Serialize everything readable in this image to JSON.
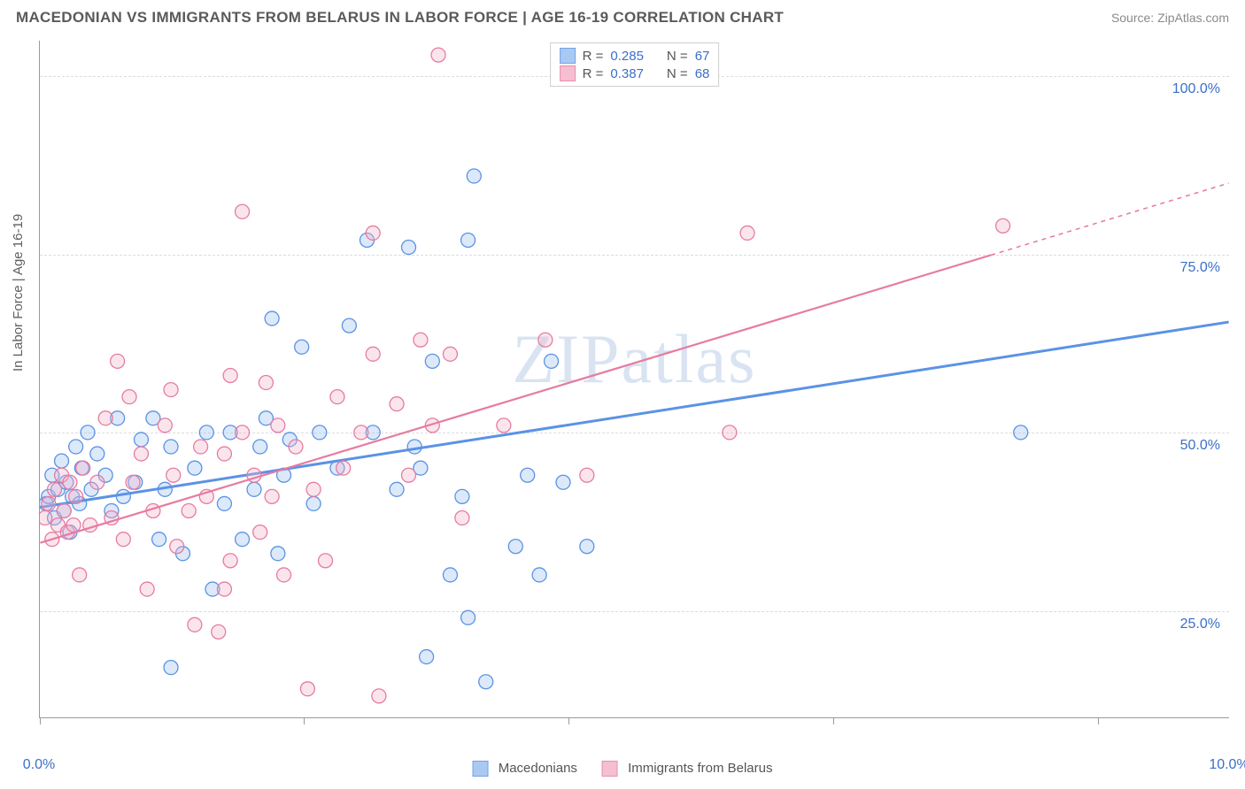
{
  "header": {
    "title": "MACEDONIAN VS IMMIGRANTS FROM BELARUS IN LABOR FORCE | AGE 16-19 CORRELATION CHART",
    "source": "Source: ZipAtlas.com"
  },
  "watermark": "ZIPatlas",
  "chart": {
    "type": "scatter",
    "ylabel": "In Labor Force | Age 16-19",
    "xlim": [
      0,
      10
    ],
    "ylim": [
      10,
      105
    ],
    "background_color": "#ffffff",
    "grid_color": "#dcdcdc",
    "axis_color": "#9a9a9a",
    "tick_label_color": "#3b6fc9",
    "tick_fontsize": 16,
    "label_fontsize": 15,
    "y_gridlines": [
      25,
      50,
      75,
      100
    ],
    "x_ticks": [
      0,
      2.22,
      4.44,
      6.67,
      8.89
    ],
    "x_tick_labels": {
      "0": "0.0%",
      "10": "10.0%"
    },
    "y_tick_labels": {
      "25": "25.0%",
      "50": "50.0%",
      "75": "75.0%",
      "100": "100.0%"
    },
    "marker_radius": 8,
    "marker_stroke_width": 1.3,
    "marker_fill_opacity": 0.35,
    "series": [
      {
        "name": "Macedonians",
        "color_stroke": "#5b92e5",
        "color_fill": "#9cc0f0",
        "R": 0.285,
        "N": 67,
        "trend": {
          "x1": 0,
          "y1": 39.5,
          "x2": 10,
          "y2": 65.5,
          "width": 3,
          "solid_to_x": 10
        },
        "points": [
          [
            0.05,
            40
          ],
          [
            0.07,
            41
          ],
          [
            0.1,
            44
          ],
          [
            0.12,
            38
          ],
          [
            0.15,
            42
          ],
          [
            0.18,
            46
          ],
          [
            0.2,
            39
          ],
          [
            0.22,
            43
          ],
          [
            0.25,
            36
          ],
          [
            0.27,
            41
          ],
          [
            0.3,
            48
          ],
          [
            0.33,
            40
          ],
          [
            0.35,
            45
          ],
          [
            0.4,
            50
          ],
          [
            0.43,
            42
          ],
          [
            0.48,
            47
          ],
          [
            0.55,
            44
          ],
          [
            0.6,
            39
          ],
          [
            0.65,
            52
          ],
          [
            0.7,
            41
          ],
          [
            0.8,
            43
          ],
          [
            0.85,
            49
          ],
          [
            0.95,
            52
          ],
          [
            1.0,
            35
          ],
          [
            1.05,
            42
          ],
          [
            1.1,
            48
          ],
          [
            1.1,
            17
          ],
          [
            1.2,
            33
          ],
          [
            1.3,
            45
          ],
          [
            1.4,
            50
          ],
          [
            1.45,
            28
          ],
          [
            1.55,
            40
          ],
          [
            1.6,
            50
          ],
          [
            1.7,
            35
          ],
          [
            1.8,
            42
          ],
          [
            1.85,
            48
          ],
          [
            1.9,
            52
          ],
          [
            1.95,
            66
          ],
          [
            2.0,
            33
          ],
          [
            2.05,
            44
          ],
          [
            2.1,
            49
          ],
          [
            2.2,
            62
          ],
          [
            2.3,
            40
          ],
          [
            2.35,
            50
          ],
          [
            2.5,
            45
          ],
          [
            2.6,
            65
          ],
          [
            2.75,
            77
          ],
          [
            2.8,
            50
          ],
          [
            3.0,
            42
          ],
          [
            3.1,
            76
          ],
          [
            3.15,
            48
          ],
          [
            3.2,
            45
          ],
          [
            3.25,
            18.5
          ],
          [
            3.3,
            60
          ],
          [
            3.45,
            30
          ],
          [
            3.55,
            41
          ],
          [
            3.6,
            24
          ],
          [
            3.6,
            77
          ],
          [
            3.65,
            86
          ],
          [
            3.75,
            15
          ],
          [
            4.0,
            34
          ],
          [
            4.1,
            44
          ],
          [
            4.2,
            30
          ],
          [
            4.3,
            60
          ],
          [
            4.4,
            43
          ],
          [
            4.6,
            34
          ],
          [
            8.25,
            50
          ]
        ]
      },
      {
        "name": "Immigrants from Belarus",
        "color_stroke": "#e77ba0",
        "color_fill": "#f4b5ca",
        "R": 0.387,
        "N": 68,
        "trend": {
          "x1": 0,
          "y1": 34.5,
          "x2": 10,
          "y2": 85,
          "width": 2.2,
          "solid_to_x": 8.0
        },
        "points": [
          [
            0.04,
            38
          ],
          [
            0.07,
            40
          ],
          [
            0.1,
            35
          ],
          [
            0.12,
            42
          ],
          [
            0.15,
            37
          ],
          [
            0.18,
            44
          ],
          [
            0.2,
            39
          ],
          [
            0.23,
            36
          ],
          [
            0.25,
            43
          ],
          [
            0.28,
            37
          ],
          [
            0.3,
            41
          ],
          [
            0.33,
            30
          ],
          [
            0.36,
            45
          ],
          [
            0.42,
            37
          ],
          [
            0.48,
            43
          ],
          [
            0.55,
            52
          ],
          [
            0.6,
            38
          ],
          [
            0.65,
            60
          ],
          [
            0.7,
            35
          ],
          [
            0.75,
            55
          ],
          [
            0.78,
            43
          ],
          [
            0.85,
            47
          ],
          [
            0.9,
            28
          ],
          [
            0.95,
            39
          ],
          [
            1.05,
            51
          ],
          [
            1.1,
            56
          ],
          [
            1.12,
            44
          ],
          [
            1.15,
            34
          ],
          [
            1.25,
            39
          ],
          [
            1.3,
            23
          ],
          [
            1.35,
            48
          ],
          [
            1.4,
            41
          ],
          [
            1.5,
            22
          ],
          [
            1.55,
            28
          ],
          [
            1.55,
            47
          ],
          [
            1.6,
            32
          ],
          [
            1.6,
            58
          ],
          [
            1.7,
            50
          ],
          [
            1.7,
            81
          ],
          [
            1.8,
            44
          ],
          [
            1.85,
            36
          ],
          [
            1.9,
            57
          ],
          [
            1.95,
            41
          ],
          [
            2.0,
            51
          ],
          [
            2.05,
            30
          ],
          [
            2.15,
            48
          ],
          [
            2.25,
            14
          ],
          [
            2.3,
            42
          ],
          [
            2.4,
            32
          ],
          [
            2.5,
            55
          ],
          [
            2.55,
            45
          ],
          [
            2.7,
            50
          ],
          [
            2.8,
            61
          ],
          [
            2.8,
            78
          ],
          [
            2.85,
            13
          ],
          [
            3.0,
            54
          ],
          [
            3.1,
            44
          ],
          [
            3.2,
            63
          ],
          [
            3.3,
            51
          ],
          [
            3.35,
            103
          ],
          [
            3.45,
            61
          ],
          [
            3.55,
            38
          ],
          [
            3.9,
            51
          ],
          [
            4.25,
            63
          ],
          [
            4.6,
            44
          ],
          [
            5.8,
            50
          ],
          [
            5.95,
            78
          ],
          [
            8.1,
            79
          ]
        ]
      }
    ],
    "legend_top": {
      "border_color": "#cfcfcf",
      "text_color": "#555555",
      "value_color": "#3b6fc9"
    },
    "legend_bottom_labels": {
      "series1": "Macedonians",
      "series2": "Immigrants from Belarus"
    }
  }
}
